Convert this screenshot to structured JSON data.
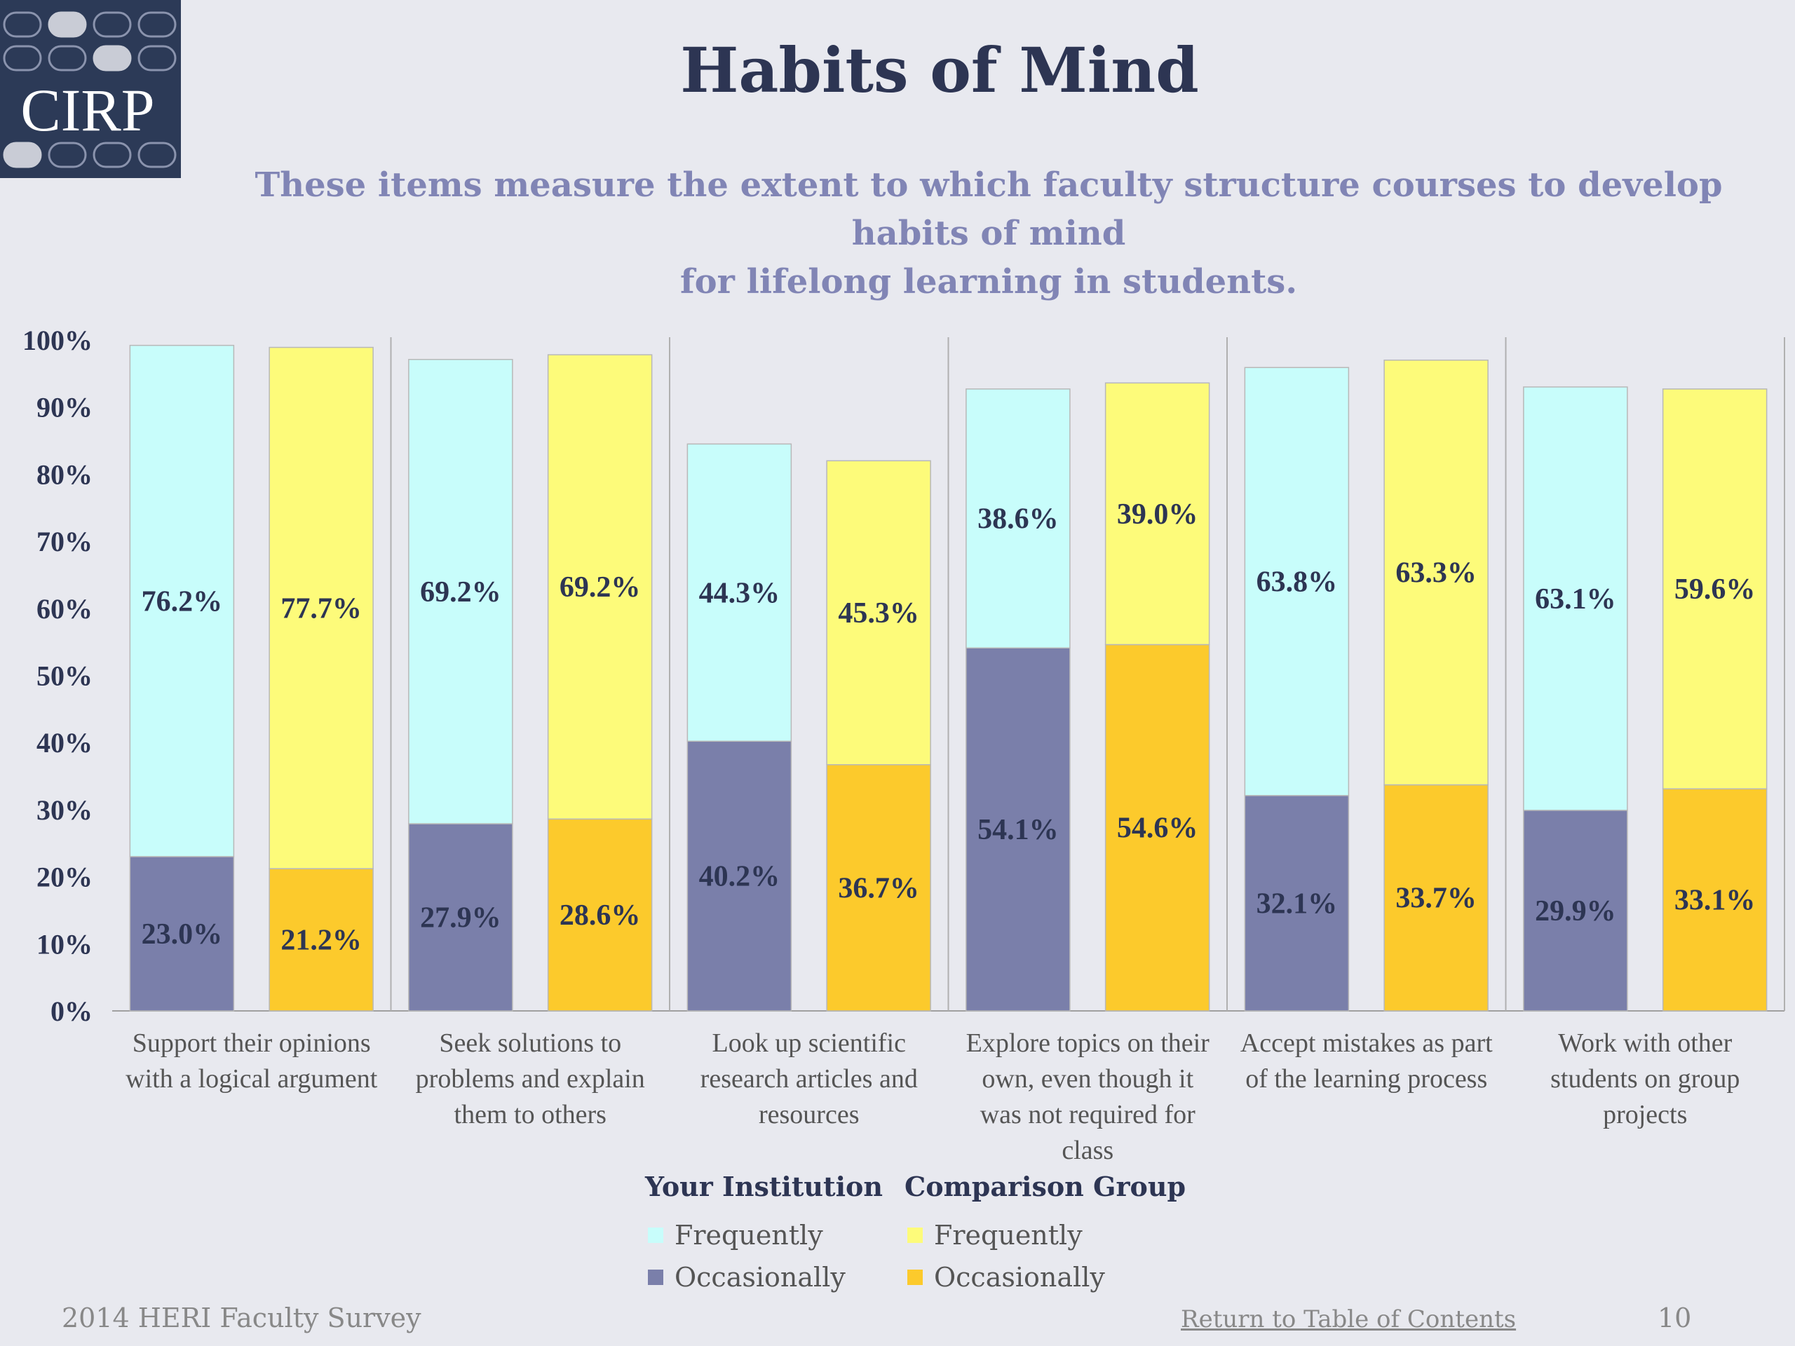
{
  "logo": {
    "text": "CIRP"
  },
  "title": "Habits of Mind",
  "subtitle_line1": "These items measure the extent to which faculty structure courses to develop habits of mind",
  "subtitle_line2": "for lifelong learning in students.",
  "legend": {
    "group1_title": "Your Institution",
    "group2_title": "Comparison Group",
    "frequently": "Frequently",
    "occasionally": "Occasionally"
  },
  "colors": {
    "inst_frequently": "#c8fdfb",
    "inst_occasionally": "#7a7faa",
    "comp_frequently": "#fdfb7a",
    "comp_occasionally": "#fcca2c"
  },
  "footer": {
    "survey": "2014 HERI Faculty Survey",
    "link": "Return to Table of Contents",
    "page": "10"
  },
  "chart_data": {
    "type": "bar",
    "stacked": true,
    "ylim": [
      0,
      100
    ],
    "yticks": [
      "0%",
      "10%",
      "20%",
      "30%",
      "40%",
      "50%",
      "60%",
      "70%",
      "80%",
      "90%",
      "100%"
    ],
    "categories": [
      [
        "Support their opinions",
        "with a logical argument"
      ],
      [
        "Seek solutions to",
        "problems and explain",
        "them to others"
      ],
      [
        "Look up scientific",
        "research articles and",
        "resources"
      ],
      [
        "Explore topics on their",
        "own, even though it",
        "was not required for",
        "class"
      ],
      [
        "Accept mistakes as part",
        "of  the learning process"
      ],
      [
        "Work with other",
        "students on group",
        "projects"
      ]
    ],
    "series": [
      {
        "group": "Your Institution",
        "name": "Occasionally",
        "values": [
          23.0,
          27.9,
          40.2,
          54.1,
          32.1,
          29.9
        ]
      },
      {
        "group": "Your Institution",
        "name": "Frequently",
        "values": [
          76.2,
          69.2,
          44.3,
          38.6,
          63.8,
          63.1
        ]
      },
      {
        "group": "Comparison Group",
        "name": "Occasionally",
        "values": [
          21.2,
          28.6,
          36.7,
          54.6,
          33.7,
          33.1
        ]
      },
      {
        "group": "Comparison Group",
        "name": "Frequently",
        "values": [
          77.7,
          69.2,
          45.3,
          39.0,
          63.3,
          59.6
        ]
      }
    ],
    "value_labels": {
      "inst_occasionally": [
        "23.0%",
        "27.9%",
        "40.2%",
        "54.1%",
        "32.1%",
        "29.9%"
      ],
      "inst_frequently": [
        "76.2%",
        "69.2%",
        "44.3%",
        "38.6%",
        "63.8%",
        "63.1%"
      ],
      "comp_occasionally": [
        "21.2%",
        "28.6%",
        "36.7%",
        "54.6%",
        "33.7%",
        "33.1%"
      ],
      "comp_frequently": [
        "77.7%",
        "69.2%",
        "45.3%",
        "39.0%",
        "63.3%",
        "59.6%"
      ]
    }
  }
}
